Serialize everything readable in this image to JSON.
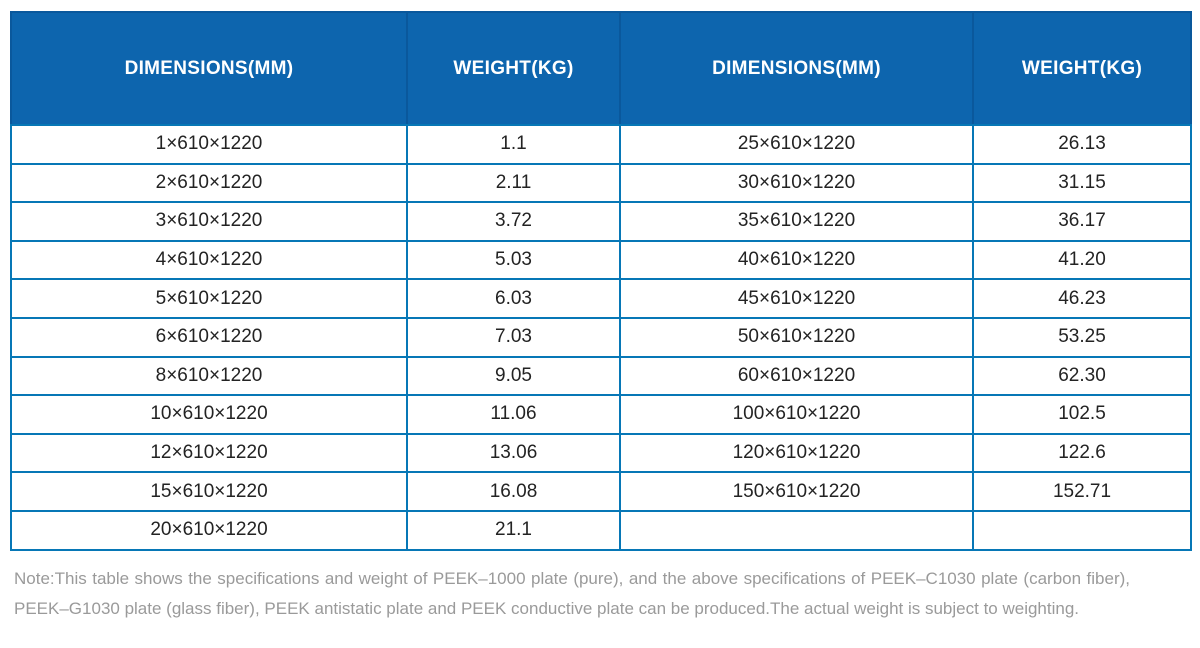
{
  "colors": {
    "header_background": "#0d65ae",
    "header_separator": "#0a589c",
    "grid_border": "#0777b6",
    "header_text": "#ffffff",
    "cell_text": "#232323",
    "note_text": "#9a9a9a"
  },
  "chart_data": {
    "type": "table",
    "columns": [
      "DIMENSIONS(MM)",
      "WEIGHT(KG)",
      "DIMENSIONS(MM)",
      "WEIGHT(KG)"
    ],
    "rows": [
      [
        "1×610×1220",
        "1.1",
        "25×610×1220",
        "26.13"
      ],
      [
        "2×610×1220",
        "2.11",
        "30×610×1220",
        "31.15"
      ],
      [
        "3×610×1220",
        "3.72",
        "35×610×1220",
        "36.17"
      ],
      [
        "4×610×1220",
        "5.03",
        "40×610×1220",
        "41.20"
      ],
      [
        "5×610×1220",
        "6.03",
        "45×610×1220",
        "46.23"
      ],
      [
        "6×610×1220",
        "7.03",
        "50×610×1220",
        "53.25"
      ],
      [
        "8×610×1220",
        "9.05",
        "60×610×1220",
        "62.30"
      ],
      [
        "10×610×1220",
        "11.06",
        "100×610×1220",
        "102.5"
      ],
      [
        "12×610×1220",
        "13.06",
        "120×610×1220",
        "122.6"
      ],
      [
        "15×610×1220",
        "16.08",
        "150×610×1220",
        "152.71"
      ],
      [
        "20×610×1220",
        "21.1",
        "",
        ""
      ]
    ],
    "note": "Note:This table shows the specifications and weight of PEEK–1000 plate (pure), and the above specifications of PEEK–C1030 plate (carbon fiber), PEEK–G1030 plate (glass fiber), PEEK antistatic plate and PEEK conductive plate can be produced.The actual weight is subject to weighting."
  }
}
